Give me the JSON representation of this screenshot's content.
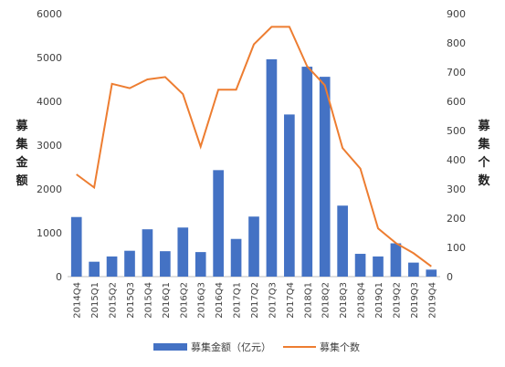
{
  "chart_data": {
    "type": "bar",
    "categories": [
      "2014Q4",
      "2015Q1",
      "2015Q2",
      "2015Q3",
      "2015Q4",
      "2016Q1",
      "2016Q2",
      "2016Q3",
      "2016Q4",
      "2017Q1",
      "2017Q2",
      "2017Q3",
      "2017Q4",
      "2018Q1",
      "2018Q2",
      "2018Q3",
      "2018Q4",
      "2019Q1",
      "2019Q2",
      "2019Q3",
      "2019Q4"
    ],
    "series": [
      {
        "name": "募集金额（亿元）",
        "type": "bar",
        "axis": "left",
        "color": "#4472C4",
        "values": [
          1360,
          340,
          460,
          590,
          1080,
          580,
          1120,
          560,
          2430,
          860,
          1370,
          4960,
          3700,
          4790,
          4560,
          1620,
          520,
          460,
          760,
          320,
          160
        ]
      },
      {
        "name": "募集个数",
        "type": "line",
        "axis": "right",
        "color": "#ED7D31",
        "values": [
          350,
          305,
          660,
          645,
          675,
          683,
          625,
          445,
          640,
          640,
          795,
          855,
          855,
          720,
          655,
          440,
          370,
          165,
          115,
          80,
          35
        ]
      }
    ],
    "ylabel_left": "募集金额",
    "ylabel_right": "募集个数",
    "ylim_left": [
      0,
      6000
    ],
    "ylim_right": [
      0,
      900
    ],
    "yticks_left": [
      "0",
      "1000",
      "2000",
      "3000",
      "4000",
      "5000",
      "6000"
    ],
    "yticks_right": [
      "0",
      "100",
      "200",
      "300",
      "400",
      "500",
      "600",
      "700",
      "800",
      "900"
    ],
    "grid": false,
    "legend_position": "bottom"
  }
}
